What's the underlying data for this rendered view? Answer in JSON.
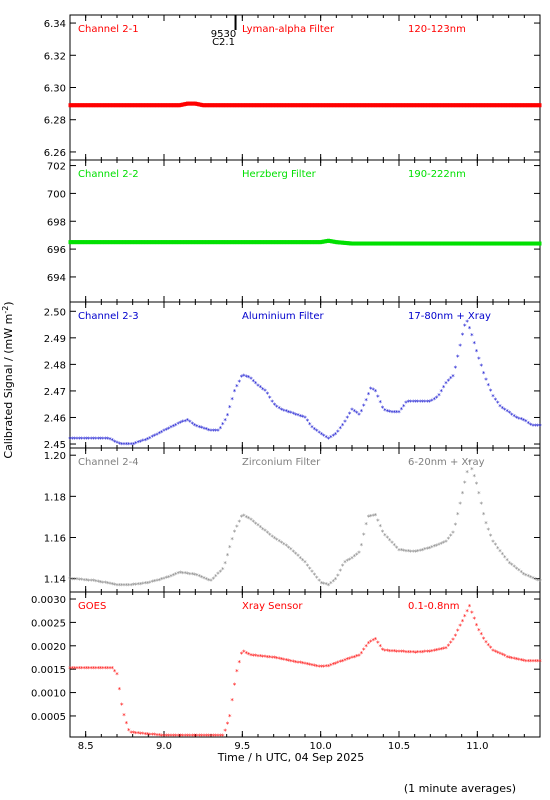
{
  "figure": {
    "xlabel": "Time / h UTC, 04 Sep 2025",
    "ylabel": "Calibrated Signal / (mW m",
    "ylabel_sup": "-2",
    "ylabel_close": ")",
    "footnote": "(1 minute averages)",
    "event_marker": {
      "label1": "9530",
      "label2": "C2.1",
      "x": 9.38
    }
  },
  "chart_data": [
    {
      "type": "scatter",
      "channel": "Channel 2-1",
      "filter": "Lyman-alpha Filter",
      "band": "120-123nm",
      "color": "#ff0000",
      "xlim": [
        8.4,
        11.4
      ],
      "ylim": [
        6.255,
        6.345
      ],
      "yticks": [
        6.26,
        6.28,
        6.3,
        6.32,
        6.34
      ],
      "ytick_labels": [
        "6.26",
        "6.28",
        "6.30",
        "6.32",
        "6.34"
      ],
      "points": [
        [
          8.4,
          6.289
        ],
        [
          8.6,
          6.289
        ],
        [
          8.8,
          6.289
        ],
        [
          9.0,
          6.289
        ],
        [
          9.1,
          6.289
        ],
        [
          9.15,
          6.29
        ],
        [
          9.2,
          6.29
        ],
        [
          9.25,
          6.289
        ],
        [
          9.4,
          6.289
        ],
        [
          9.6,
          6.289
        ],
        [
          9.8,
          6.289
        ],
        [
          10.0,
          6.289
        ],
        [
          10.2,
          6.289
        ],
        [
          10.4,
          6.289
        ],
        [
          10.6,
          6.289
        ],
        [
          10.8,
          6.289
        ],
        [
          11.0,
          6.289
        ],
        [
          11.2,
          6.289
        ],
        [
          11.4,
          6.289
        ]
      ]
    },
    {
      "type": "scatter",
      "channel": "Channel 2-2",
      "filter": "Herzberg Filter",
      "band": "190-222nm",
      "color": "#00e000",
      "xlim": [
        8.4,
        11.4
      ],
      "ylim": [
        692.2,
        702.4
      ],
      "yticks": [
        694,
        696,
        698,
        700,
        702
      ],
      "ytick_labels": [
        "694",
        "696",
        "698",
        "700",
        "702"
      ],
      "points": [
        [
          8.4,
          696.5
        ],
        [
          8.8,
          696.5
        ],
        [
          9.2,
          696.5
        ],
        [
          9.6,
          696.5
        ],
        [
          10.0,
          696.5
        ],
        [
          10.05,
          696.6
        ],
        [
          10.1,
          696.5
        ],
        [
          10.2,
          696.4
        ],
        [
          10.6,
          696.4
        ],
        [
          11.0,
          696.4
        ],
        [
          11.4,
          696.4
        ]
      ]
    },
    {
      "type": "scatter",
      "channel": "Channel 2-3",
      "filter": "Aluminium Filter",
      "band": "17-80nm + Xray",
      "color": "#0000cc",
      "xlim": [
        8.4,
        11.4
      ],
      "ylim": [
        2.4485,
        2.5035
      ],
      "yticks": [
        2.45,
        2.46,
        2.47,
        2.48,
        2.49,
        2.5
      ],
      "ytick_labels": [
        "2.45",
        "2.46",
        "2.47",
        "2.48",
        "2.49",
        "2.50"
      ],
      "points": [
        [
          8.4,
          2.452
        ],
        [
          8.55,
          2.452
        ],
        [
          8.65,
          2.452
        ],
        [
          8.72,
          2.45
        ],
        [
          8.8,
          2.45
        ],
        [
          8.9,
          2.452
        ],
        [
          9.0,
          2.455
        ],
        [
          9.1,
          2.458
        ],
        [
          9.15,
          2.459
        ],
        [
          9.2,
          2.457
        ],
        [
          9.25,
          2.456
        ],
        [
          9.3,
          2.455
        ],
        [
          9.35,
          2.455
        ],
        [
          9.4,
          2.46
        ],
        [
          9.45,
          2.47
        ],
        [
          9.5,
          2.476
        ],
        [
          9.55,
          2.475
        ],
        [
          9.6,
          2.472
        ],
        [
          9.65,
          2.47
        ],
        [
          9.7,
          2.465
        ],
        [
          9.75,
          2.463
        ],
        [
          9.8,
          2.462
        ],
        [
          9.9,
          2.46
        ],
        [
          9.95,
          2.456
        ],
        [
          10.0,
          2.454
        ],
        [
          10.05,
          2.452
        ],
        [
          10.1,
          2.454
        ],
        [
          10.15,
          2.458
        ],
        [
          10.2,
          2.463
        ],
        [
          10.25,
          2.461
        ],
        [
          10.3,
          2.468
        ],
        [
          10.32,
          2.471
        ],
        [
          10.35,
          2.47
        ],
        [
          10.4,
          2.463
        ],
        [
          10.45,
          2.462
        ],
        [
          10.5,
          2.462
        ],
        [
          10.55,
          2.466
        ],
        [
          10.7,
          2.466
        ],
        [
          10.75,
          2.468
        ],
        [
          10.8,
          2.473
        ],
        [
          10.85,
          2.476
        ],
        [
          10.9,
          2.49
        ],
        [
          10.93,
          2.497
        ],
        [
          10.96,
          2.492
        ],
        [
          11.0,
          2.484
        ],
        [
          11.05,
          2.475
        ],
        [
          11.1,
          2.468
        ],
        [
          11.15,
          2.464
        ],
        [
          11.2,
          2.462
        ],
        [
          11.25,
          2.46
        ],
        [
          11.3,
          2.459
        ],
        [
          11.35,
          2.457
        ],
        [
          11.4,
          2.457
        ]
      ]
    },
    {
      "type": "scatter",
      "channel": "Channel 2-4",
      "filter": "Zirconium Filter",
      "band": "6-20nm + Xray",
      "color": "#808080",
      "xlim": [
        8.4,
        11.4
      ],
      "ylim": [
        1.1335,
        1.2035
      ],
      "yticks": [
        1.14,
        1.16,
        1.18,
        1.2
      ],
      "ytick_labels": [
        "1.14",
        "1.16",
        "1.18",
        "1.20"
      ],
      "points": [
        [
          8.4,
          1.14
        ],
        [
          8.55,
          1.139
        ],
        [
          8.7,
          1.137
        ],
        [
          8.8,
          1.137
        ],
        [
          8.9,
          1.138
        ],
        [
          9.0,
          1.14
        ],
        [
          9.1,
          1.143
        ],
        [
          9.2,
          1.142
        ],
        [
          9.3,
          1.139
        ],
        [
          9.38,
          1.145
        ],
        [
          9.45,
          1.163
        ],
        [
          9.5,
          1.171
        ],
        [
          9.55,
          1.169
        ],
        [
          9.6,
          1.166
        ],
        [
          9.7,
          1.16
        ],
        [
          9.8,
          1.155
        ],
        [
          9.9,
          1.148
        ],
        [
          10.0,
          1.138
        ],
        [
          10.05,
          1.137
        ],
        [
          10.1,
          1.14
        ],
        [
          10.15,
          1.148
        ],
        [
          10.2,
          1.15
        ],
        [
          10.25,
          1.153
        ],
        [
          10.3,
          1.17
        ],
        [
          10.35,
          1.171
        ],
        [
          10.4,
          1.162
        ],
        [
          10.45,
          1.158
        ],
        [
          10.5,
          1.154
        ],
        [
          10.6,
          1.153
        ],
        [
          10.7,
          1.155
        ],
        [
          10.8,
          1.158
        ],
        [
          10.85,
          1.163
        ],
        [
          10.9,
          1.18
        ],
        [
          10.95,
          1.197
        ],
        [
          11.0,
          1.185
        ],
        [
          11.05,
          1.168
        ],
        [
          11.1,
          1.158
        ],
        [
          11.2,
          1.148
        ],
        [
          11.3,
          1.142
        ],
        [
          11.4,
          1.139
        ]
      ]
    },
    {
      "type": "scatter",
      "channel": "GOES",
      "filter": "Xray Sensor",
      "band": "0.1-0.8nm",
      "color": "#ff0000",
      "xlim": [
        8.4,
        11.4
      ],
      "ylim": [
        5e-05,
        0.00315
      ],
      "yticks": [
        0.0005,
        0.001,
        0.0015,
        0.002,
        0.0025,
        0.003
      ],
      "ytick_labels": [
        "0.0005",
        "0.0010",
        "0.0015",
        "0.0020",
        "0.0025",
        "0.0030"
      ],
      "points": [
        [
          8.4,
          0.00152
        ],
        [
          8.55,
          0.00153
        ],
        [
          8.67,
          0.00152
        ],
        [
          8.7,
          0.0014
        ],
        [
          8.73,
          0.00075
        ],
        [
          8.75,
          0.00045
        ],
        [
          8.78,
          0.00015
        ],
        [
          9.0,
          8e-05
        ],
        [
          9.2,
          8e-05
        ],
        [
          9.38,
          8e-05
        ],
        [
          9.42,
          0.0005
        ],
        [
          9.46,
          0.0014
        ],
        [
          9.5,
          0.0019
        ],
        [
          9.55,
          0.0018
        ],
        [
          9.7,
          0.00175
        ],
        [
          9.8,
          0.00168
        ],
        [
          9.9,
          0.00162
        ],
        [
          10.0,
          0.00155
        ],
        [
          10.05,
          0.00157
        ],
        [
          10.2,
          0.00175
        ],
        [
          10.25,
          0.0018
        ],
        [
          10.3,
          0.00205
        ],
        [
          10.35,
          0.00215
        ],
        [
          10.4,
          0.0019
        ],
        [
          10.5,
          0.00188
        ],
        [
          10.6,
          0.00186
        ],
        [
          10.7,
          0.00188
        ],
        [
          10.8,
          0.00195
        ],
        [
          10.85,
          0.00215
        ],
        [
          10.9,
          0.0025
        ],
        [
          10.95,
          0.00285
        ],
        [
          11.0,
          0.0024
        ],
        [
          11.05,
          0.0021
        ],
        [
          11.1,
          0.0019
        ],
        [
          11.2,
          0.00175
        ],
        [
          11.3,
          0.00168
        ],
        [
          11.4,
          0.00167
        ]
      ]
    }
  ],
  "xaxis": {
    "xlim": [
      8.4,
      11.4
    ],
    "ticks": [
      8.5,
      9.0,
      9.5,
      10.0,
      10.5,
      11.0
    ],
    "tick_labels": [
      "8.5",
      "9.0",
      "9.5",
      "10.0",
      "10.5",
      "11.0"
    ]
  }
}
